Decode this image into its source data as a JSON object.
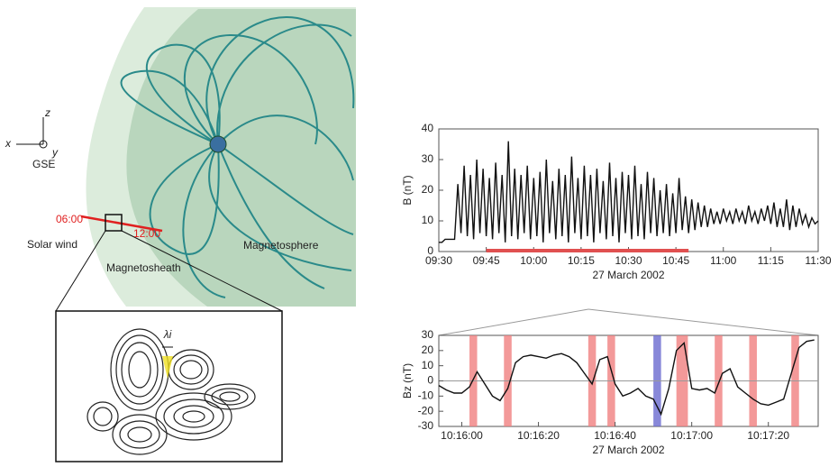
{
  "diagram": {
    "axis_x": "x",
    "axis_y": "y",
    "axis_z": "z",
    "frame": "GSE",
    "time_start": "06:00",
    "time_end": "12:00",
    "solar_wind": "Solar wind",
    "magnetosheath": "Magnetosheath",
    "magnetosphere": "Magnetosphere",
    "scale_label": "λi"
  },
  "chart_data": [
    {
      "type": "line",
      "y_label": "B (nT)",
      "x_label": "27 March 2002",
      "x": [
        "09:30",
        "09:31",
        "09:32",
        "09:33",
        "09:34",
        "09:35",
        "09:36",
        "09:37",
        "09:38",
        "09:39",
        "09:40",
        "09:41",
        "09:42",
        "09:43",
        "09:44",
        "09:45",
        "09:46",
        "09:47",
        "09:48",
        "09:49",
        "09:50",
        "09:51",
        "09:52",
        "09:53",
        "09:54",
        "09:55",
        "09:56",
        "09:57",
        "09:58",
        "09:59",
        "10:00",
        "10:01",
        "10:02",
        "10:03",
        "10:04",
        "10:05",
        "10:06",
        "10:07",
        "10:08",
        "10:09",
        "10:10",
        "10:11",
        "10:12",
        "10:13",
        "10:14",
        "10:15",
        "10:16",
        "10:17",
        "10:18",
        "10:19",
        "10:20",
        "10:21",
        "10:22",
        "10:23",
        "10:24",
        "10:25",
        "10:26",
        "10:27",
        "10:28",
        "10:29",
        "10:30",
        "10:31",
        "10:32",
        "10:33",
        "10:34",
        "10:35",
        "10:36",
        "10:37",
        "10:38",
        "10:39",
        "10:40",
        "10:41",
        "10:42",
        "10:43",
        "10:44",
        "10:45",
        "10:46",
        "10:47",
        "10:48",
        "10:49",
        "10:50",
        "10:51",
        "10:52",
        "10:53",
        "10:54",
        "10:55",
        "10:56",
        "10:57",
        "10:58",
        "10:59",
        "11:00",
        "11:01",
        "11:02",
        "11:03",
        "11:04",
        "11:05",
        "11:06",
        "11:07",
        "11:08",
        "11:09",
        "11:10",
        "11:11",
        "11:12",
        "11:13",
        "11:14",
        "11:15",
        "11:16",
        "11:17",
        "11:18",
        "11:19",
        "11:20",
        "11:21",
        "11:22",
        "11:23",
        "11:24",
        "11:25",
        "11:26",
        "11:27",
        "11:28",
        "11:29",
        "11:30"
      ],
      "series": [
        {
          "color": "#111111",
          "values": [
            3,
            3,
            4,
            4,
            4,
            4,
            22,
            6,
            28,
            5,
            25,
            4,
            30,
            6,
            27,
            5,
            24,
            4,
            29,
            6,
            25,
            3,
            36,
            5,
            27,
            4,
            25,
            6,
            28,
            4,
            24,
            5,
            26,
            3,
            30,
            6,
            23,
            4,
            27,
            5,
            25,
            3,
            31,
            6,
            24,
            4,
            28,
            5,
            25,
            3,
            27,
            6,
            23,
            4,
            29,
            5,
            24,
            3,
            26,
            6,
            25,
            4,
            28,
            5,
            22,
            4,
            26,
            6,
            24,
            5,
            20,
            6,
            22,
            5,
            19,
            6,
            24,
            7,
            18,
            6,
            17,
            7,
            16,
            8,
            15,
            8,
            14,
            9,
            13,
            9,
            14,
            10,
            13,
            9,
            14,
            10,
            13,
            9,
            15,
            10,
            13,
            9,
            14,
            10,
            15,
            9,
            16,
            8,
            14,
            8,
            17,
            7,
            15,
            8,
            14,
            9,
            12,
            8,
            11,
            9,
            10
          ]
        }
      ],
      "highlight": {
        "x": [
          "09:45",
          "10:49"
        ],
        "color": "#e05050"
      },
      "xlim": [
        "09:30",
        "11:30"
      ],
      "xticks": [
        "09:30",
        "09:45",
        "10:00",
        "10:15",
        "10:30",
        "10:45",
        "11:00",
        "11:15",
        "11:30"
      ],
      "ylim": [
        0,
        40
      ],
      "yticks": [
        0,
        10,
        20,
        30,
        40
      ]
    },
    {
      "type": "line",
      "y_label": "Bz (nT)",
      "x_label": "27 March 2002",
      "x": [
        "10:15:54",
        "10:15:56",
        "10:15:58",
        "10:16:00",
        "10:16:02",
        "10:16:04",
        "10:16:06",
        "10:16:08",
        "10:16:10",
        "10:16:12",
        "10:16:14",
        "10:16:16",
        "10:16:18",
        "10:16:20",
        "10:16:22",
        "10:16:24",
        "10:16:26",
        "10:16:28",
        "10:16:30",
        "10:16:32",
        "10:16:34",
        "10:16:36",
        "10:16:38",
        "10:16:40",
        "10:16:42",
        "10:16:44",
        "10:16:46",
        "10:16:48",
        "10:16:50",
        "10:16:52",
        "10:16:54",
        "10:16:56",
        "10:16:58",
        "10:17:00",
        "10:17:02",
        "10:17:04",
        "10:17:06",
        "10:17:08",
        "10:17:10",
        "10:17:12",
        "10:17:14",
        "10:17:16",
        "10:17:18",
        "10:17:20",
        "10:17:22",
        "10:17:24",
        "10:17:26",
        "10:17:28",
        "10:17:30",
        "10:17:32"
      ],
      "series": [
        {
          "color": "#111111",
          "values": [
            -3,
            -6,
            -8,
            -8,
            -4,
            6,
            -2,
            -10,
            -13,
            -5,
            12,
            16,
            17,
            16,
            15,
            17,
            18,
            16,
            12,
            5,
            -2,
            14,
            16,
            -2,
            -10,
            -8,
            -5,
            -10,
            -12,
            -22,
            -5,
            20,
            25,
            -5,
            -6,
            -5,
            -8,
            5,
            8,
            -4,
            -8,
            -12,
            -15,
            -16,
            -14,
            -12,
            5,
            22,
            26,
            27
          ]
        }
      ],
      "bands": [
        {
          "x": [
            "10:16:02",
            "10:16:04"
          ],
          "color": "#f08080"
        },
        {
          "x": [
            "10:16:11",
            "10:16:13"
          ],
          "color": "#f08080"
        },
        {
          "x": [
            "10:16:33",
            "10:16:35"
          ],
          "color": "#f08080"
        },
        {
          "x": [
            "10:16:38",
            "10:16:40"
          ],
          "color": "#f08080"
        },
        {
          "x": [
            "10:16:50",
            "10:16:52"
          ],
          "color": "#6a6ad0"
        },
        {
          "x": [
            "10:16:56",
            "10:16:59"
          ],
          "color": "#f08080"
        },
        {
          "x": [
            "10:17:06",
            "10:17:08"
          ],
          "color": "#f08080"
        },
        {
          "x": [
            "10:17:15",
            "10:17:17"
          ],
          "color": "#f08080"
        },
        {
          "x": [
            "10:17:26",
            "10:17:28"
          ],
          "color": "#f08080"
        }
      ],
      "zero_line": true,
      "xlim": [
        "10:15:54",
        "10:17:33"
      ],
      "xticks": [
        "10:16:00",
        "10:16:20",
        "10:16:40",
        "10:17:00",
        "10:17:20"
      ],
      "ylim": [
        -30,
        30
      ],
      "yticks": [
        -30,
        -20,
        -10,
        0,
        10,
        20,
        30
      ]
    }
  ]
}
